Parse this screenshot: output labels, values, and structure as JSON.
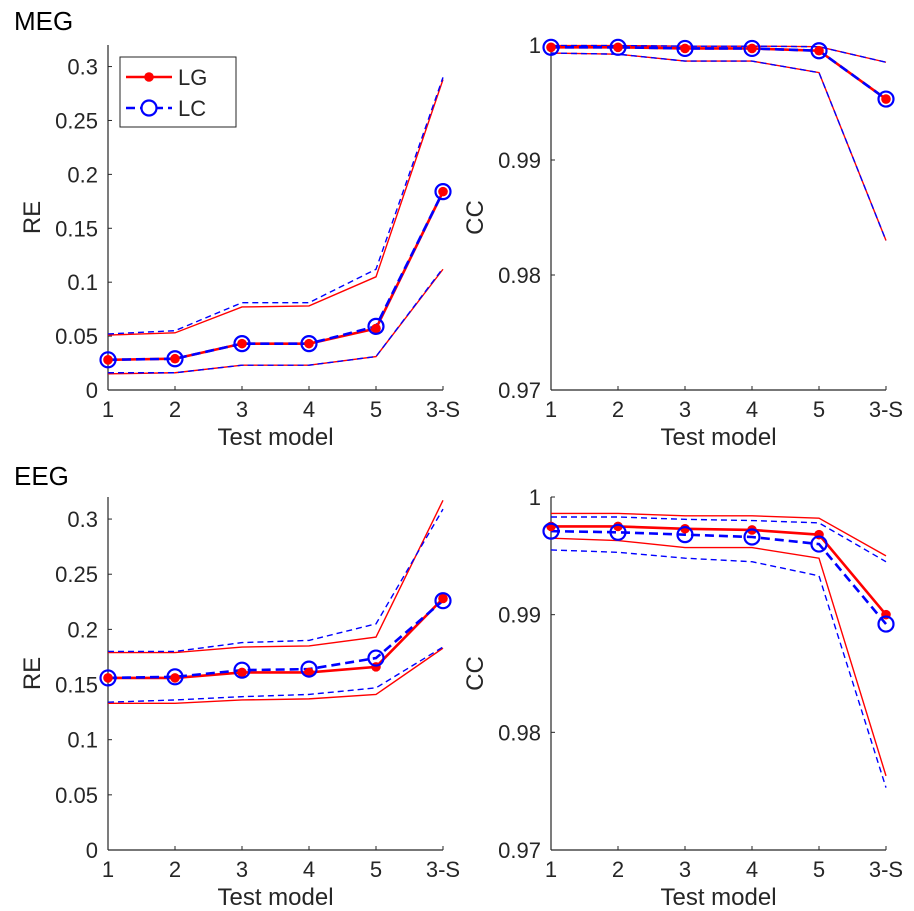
{
  "figure": {
    "sections": [
      "MEG",
      "EEG"
    ],
    "legend": [
      {
        "label": "LG",
        "color": "#ff0000",
        "style": "solid",
        "marker": "dot"
      },
      {
        "label": "LC",
        "color": "#0000ff",
        "style": "dashed",
        "marker": "circle"
      }
    ]
  },
  "chart_data": [
    {
      "type": "line",
      "section": "MEG",
      "xlabel": "Test model",
      "ylabel": "RE",
      "categories": [
        "1",
        "2",
        "3",
        "4",
        "5",
        "3-S"
      ],
      "ylim": [
        0,
        0.32
      ],
      "yticks": [
        0,
        0.05,
        0.1,
        0.15,
        0.2,
        0.25,
        0.3
      ],
      "ytick_labels": [
        "0",
        "0.05",
        "0.1",
        "0.15",
        "0.2",
        "0.25",
        "0.3"
      ],
      "legend_position": "top-left",
      "series": [
        {
          "name": "LG",
          "color": "#ff0000",
          "style": "solid",
          "marker": "dot",
          "values": [
            0.028,
            0.029,
            0.043,
            0.043,
            0.057,
            0.184
          ]
        },
        {
          "name": "LC",
          "color": "#0000ff",
          "style": "dashed",
          "marker": "circle",
          "values": [
            0.028,
            0.029,
            0.043,
            0.043,
            0.059,
            0.184
          ]
        }
      ],
      "bands": [
        {
          "color": "#ff0000",
          "style": "solid",
          "upper": [
            0.051,
            0.053,
            0.077,
            0.078,
            0.105,
            0.288
          ],
          "lower": [
            0.015,
            0.016,
            0.023,
            0.023,
            0.031,
            0.112
          ]
        },
        {
          "color": "#0000ff",
          "style": "dashed",
          "upper": [
            0.052,
            0.055,
            0.081,
            0.081,
            0.112,
            0.29
          ],
          "lower": [
            0.016,
            0.016,
            0.023,
            0.023,
            0.031,
            0.113
          ]
        }
      ]
    },
    {
      "type": "line",
      "section": "MEG",
      "xlabel": "Test model",
      "ylabel": "CC",
      "categories": [
        "1",
        "2",
        "3",
        "4",
        "5",
        "3-S"
      ],
      "ylim": [
        0.97,
        1.0
      ],
      "yticks": [
        0.97,
        0.98,
        0.99,
        1.0
      ],
      "ytick_labels": [
        "0.97",
        "0.98",
        "0.99",
        "1"
      ],
      "series": [
        {
          "name": "LG",
          "color": "#ff0000",
          "style": "solid",
          "marker": "dot",
          "values": [
            0.9998,
            0.9998,
            0.9997,
            0.9997,
            0.9995,
            0.9953
          ]
        },
        {
          "name": "LC",
          "color": "#0000ff",
          "style": "dashed",
          "marker": "circle",
          "values": [
            0.9998,
            0.9998,
            0.9997,
            0.9997,
            0.9995,
            0.9953
          ]
        }
      ],
      "bands": [
        {
          "color": "#ff0000",
          "style": "solid",
          "upper": [
            0.99995,
            0.99995,
            0.9999,
            0.9999,
            0.99985,
            0.9985
          ],
          "lower": [
            0.9993,
            0.9992,
            0.9986,
            0.9986,
            0.9976,
            0.983
          ]
        },
        {
          "color": "#0000ff",
          "style": "dashed",
          "upper": [
            0.99995,
            0.99995,
            0.9999,
            0.9999,
            0.99985,
            0.9985
          ],
          "lower": [
            0.9993,
            0.9992,
            0.9986,
            0.9986,
            0.9976,
            0.983
          ]
        }
      ]
    },
    {
      "type": "line",
      "section": "EEG",
      "xlabel": "Test model",
      "ylabel": "RE",
      "categories": [
        "1",
        "2",
        "3",
        "4",
        "5",
        "3-S"
      ],
      "ylim": [
        0,
        0.32
      ],
      "yticks": [
        0,
        0.05,
        0.1,
        0.15,
        0.2,
        0.25,
        0.3
      ],
      "ytick_labels": [
        "0",
        "0.05",
        "0.1",
        "0.15",
        "0.2",
        "0.25",
        "0.3"
      ],
      "series": [
        {
          "name": "LG",
          "color": "#ff0000",
          "style": "solid",
          "marker": "dot",
          "values": [
            0.156,
            0.156,
            0.161,
            0.161,
            0.166,
            0.228
          ]
        },
        {
          "name": "LC",
          "color": "#0000ff",
          "style": "dashed",
          "marker": "circle",
          "values": [
            0.156,
            0.157,
            0.163,
            0.164,
            0.174,
            0.226
          ]
        }
      ],
      "bands": [
        {
          "color": "#ff0000",
          "style": "solid",
          "upper": [
            0.179,
            0.179,
            0.184,
            0.185,
            0.193,
            0.317
          ],
          "lower": [
            0.133,
            0.133,
            0.136,
            0.137,
            0.141,
            0.183
          ]
        },
        {
          "color": "#0000ff",
          "style": "dashed",
          "upper": [
            0.18,
            0.18,
            0.188,
            0.19,
            0.205,
            0.309
          ],
          "lower": [
            0.134,
            0.136,
            0.139,
            0.141,
            0.147,
            0.184
          ]
        }
      ]
    },
    {
      "type": "line",
      "section": "EEG",
      "xlabel": "Test model",
      "ylabel": "CC",
      "categories": [
        "1",
        "2",
        "3",
        "4",
        "5",
        "3-S"
      ],
      "ylim": [
        0.97,
        1.0
      ],
      "yticks": [
        0.97,
        0.98,
        0.99,
        1.0
      ],
      "ytick_labels": [
        "0.97",
        "0.98",
        "0.99",
        "1"
      ],
      "series": [
        {
          "name": "LG",
          "color": "#ff0000",
          "style": "solid",
          "marker": "dot",
          "values": [
            0.9975,
            0.9975,
            0.9973,
            0.9972,
            0.9968,
            0.99
          ]
        },
        {
          "name": "LC",
          "color": "#0000ff",
          "style": "dashed",
          "marker": "circle",
          "values": [
            0.9971,
            0.997,
            0.9968,
            0.9966,
            0.996,
            0.9892
          ]
        }
      ],
      "bands": [
        {
          "color": "#ff0000",
          "style": "solid",
          "upper": [
            0.9986,
            0.9986,
            0.9984,
            0.9984,
            0.9982,
            0.995
          ],
          "lower": [
            0.9965,
            0.9963,
            0.9957,
            0.9957,
            0.9948,
            0.9763
          ]
        },
        {
          "color": "#0000ff",
          "style": "dashed",
          "upper": [
            0.9983,
            0.9983,
            0.9981,
            0.998,
            0.9978,
            0.9945
          ],
          "lower": [
            0.9955,
            0.9953,
            0.9948,
            0.9945,
            0.9933,
            0.9753
          ]
        }
      ]
    }
  ]
}
